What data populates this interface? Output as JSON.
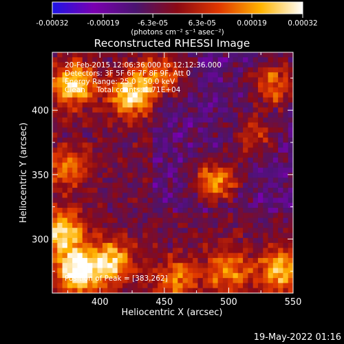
{
  "chart_data": {
    "type": "heatmap",
    "title": "Reconstructed RHESSI Image",
    "xlabel": "Heliocentric X (arcsec)",
    "ylabel": "Heliocentric Y (arcsec)",
    "xlim": [
      363,
      550
    ],
    "ylim": [
      258,
      445
    ],
    "x_ticks": [
      400,
      450,
      500,
      550
    ],
    "y_ticks": [
      300,
      350,
      400
    ],
    "colorbar": {
      "range": [
        -0.00032,
        0.00032
      ],
      "tick_labels": [
        "-0.00032",
        "-0.00019",
        "-6.3e-05",
        "6.3e-05",
        "0.00019",
        "0.00032"
      ],
      "tick_values": [
        -0.00032,
        -0.00019,
        -6.3e-05,
        6.3e-05,
        0.00019,
        0.00032
      ],
      "unit_label": "(photons cm⁻² s⁻¹ asec⁻²)",
      "colors": [
        "#1e14e6",
        "#7a00b0",
        "#4a1470",
        "#8c0a14",
        "#e03800",
        "#ffb400",
        "#ffffff"
      ]
    },
    "info_lines": [
      "20-Feb-2015 12:06:36.000 to 12:12:36.000",
      "Detectors: 3F 5F 6F 7F 8F 9F, Att 0",
      "Energy Range: 25.0 - 50.0 keV",
      "Clean     Total counts: 1.71E+04"
    ],
    "peak_label": "Position of Peak = [383,262]",
    "peak_position": [
      383,
      262
    ],
    "bright_sources": [
      {
        "x": 380,
        "y": 420,
        "level": 0.8
      },
      {
        "x": 425,
        "y": 412,
        "level": 0.85
      },
      {
        "x": 450,
        "y": 428,
        "level": 0.6
      },
      {
        "x": 375,
        "y": 355,
        "level": 0.5
      },
      {
        "x": 383,
        "y": 275,
        "level": 1.0
      },
      {
        "x": 410,
        "y": 282,
        "level": 0.75
      },
      {
        "x": 372,
        "y": 305,
        "level": 0.8
      },
      {
        "x": 490,
        "y": 345,
        "level": 0.75
      },
      {
        "x": 535,
        "y": 420,
        "level": 0.65
      },
      {
        "x": 520,
        "y": 380,
        "level": 0.45
      },
      {
        "x": 540,
        "y": 275,
        "level": 0.7
      },
      {
        "x": 500,
        "y": 275,
        "level": 0.6
      },
      {
        "x": 460,
        "y": 268,
        "level": 0.55
      }
    ],
    "dim_region": {
      "x": [
        440,
        550
      ],
      "y": [
        320,
        445
      ],
      "level": -0.6
    }
  },
  "timestamp": "19-May-2022 01:16"
}
